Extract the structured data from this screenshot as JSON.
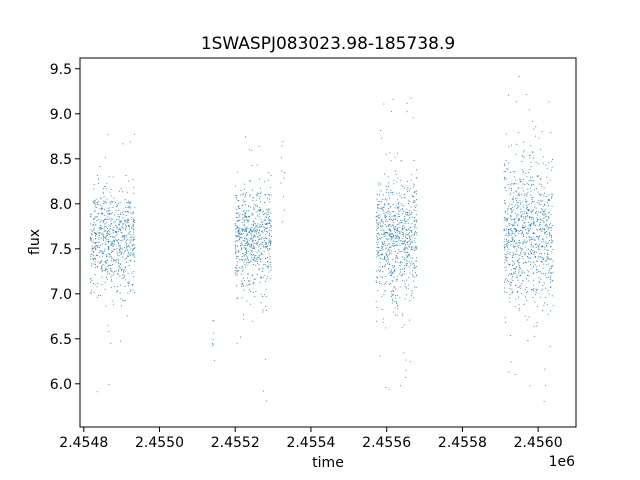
{
  "chart_data": {
    "type": "scatter",
    "title": "1SWASPJ083023.98-185738.9",
    "xlabel": "time",
    "ylabel": "flux",
    "x_offset_label": "1e6",
    "xlim": [
      2454790,
      2456100
    ],
    "ylim": [
      5.52,
      9.62
    ],
    "x_ticks": [
      2454800,
      2455000,
      2455200,
      2455400,
      2455600,
      2455800,
      2456000
    ],
    "x_tick_labels": [
      "2.4548",
      "2.4550",
      "2.4552",
      "2.4554",
      "2.4556",
      "2.4558",
      "2.4560"
    ],
    "y_ticks": [
      6.0,
      6.5,
      7.0,
      7.5,
      8.0,
      8.5,
      9.0,
      9.5
    ],
    "y_tick_labels": [
      "6.0",
      "6.5",
      "7.0",
      "7.5",
      "8.0",
      "8.5",
      "9.0",
      "9.5"
    ],
    "grid": false,
    "marker_color": "#1f77b4",
    "series": [
      {
        "clusters": [
          {
            "x_start": 2454817,
            "x_end": 2454935,
            "center": 7.6,
            "spread": 0.28,
            "min": 5.8,
            "max": 8.9,
            "n": 700
          },
          {
            "x_start": 2455140,
            "x_end": 2455145,
            "center": 6.45,
            "spread": 0.12,
            "min": 6.2,
            "max": 6.7,
            "n": 8
          },
          {
            "x_start": 2455200,
            "x_end": 2455295,
            "center": 7.6,
            "spread": 0.3,
            "min": 5.8,
            "max": 8.9,
            "n": 650
          },
          {
            "x_start": 2455320,
            "x_end": 2455330,
            "center": 8.3,
            "spread": 0.25,
            "min": 7.8,
            "max": 8.75,
            "n": 10
          },
          {
            "x_start": 2455572,
            "x_end": 2455680,
            "center": 7.6,
            "spread": 0.35,
            "min": 5.9,
            "max": 9.25,
            "n": 750
          },
          {
            "x_start": 2455910,
            "x_end": 2456040,
            "center": 7.65,
            "spread": 0.42,
            "min": 5.7,
            "max": 9.45,
            "n": 900
          }
        ]
      }
    ]
  }
}
